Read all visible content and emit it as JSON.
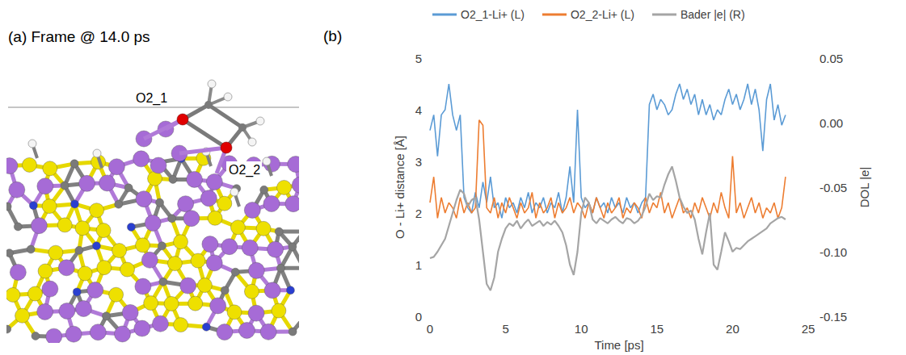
{
  "panel_a": {
    "title": "(a) Frame @ 14.0 ps",
    "labels": [
      "O2_1",
      "O2_2"
    ]
  },
  "chart_data": {
    "type": "line",
    "title": "(b)",
    "x_label": "Time [ps]",
    "y_label": "O - Li+ distance [Å]",
    "y2_label": "DOL |e|",
    "xlim": [
      0,
      25
    ],
    "xticks": [
      0,
      5,
      10,
      15,
      20,
      25
    ],
    "ylim": [
      0,
      5
    ],
    "yticks": [
      0,
      1,
      2,
      3,
      4,
      5
    ],
    "y2lim": [
      -0.15,
      0.05
    ],
    "y2ticks": [
      {
        "value": -0.15,
        "label": "-0.15"
      },
      {
        "value": -0.1,
        "label": "-0.10"
      },
      {
        "value": -0.05,
        "label": "-0.05"
      },
      {
        "value": 0,
        "label": "0.00"
      },
      {
        "value": 0.05,
        "label": "0.05"
      }
    ],
    "grid": false,
    "legend": "top",
    "x": [
      0,
      0.25,
      0.5,
      0.75,
      1,
      1.25,
      1.5,
      1.75,
      2,
      2.25,
      2.5,
      2.75,
      3,
      3.25,
      3.5,
      3.75,
      4,
      4.25,
      4.5,
      4.75,
      5,
      5.25,
      5.5,
      5.75,
      6,
      6.25,
      6.5,
      6.75,
      7,
      7.25,
      7.5,
      7.75,
      8,
      8.25,
      8.5,
      8.75,
      9,
      9.25,
      9.5,
      9.75,
      10,
      10.25,
      10.5,
      10.75,
      11,
      11.25,
      11.5,
      11.75,
      12,
      12.25,
      12.5,
      12.75,
      13,
      13.25,
      13.5,
      13.75,
      14,
      14.25,
      14.5,
      14.75,
      15,
      15.25,
      15.5,
      15.75,
      16,
      16.25,
      16.5,
      16.75,
      17,
      17.25,
      17.5,
      17.75,
      18,
      18.25,
      18.5,
      18.75,
      19,
      19.25,
      19.5,
      19.75,
      20,
      20.25,
      20.5,
      20.75,
      21,
      21.25,
      21.5,
      21.75,
      22,
      22.25,
      22.5,
      22.75,
      23,
      23.25,
      23.5
    ],
    "series": [
      {
        "name": "O2_1-Li+ (L)",
        "color": "#5b9bd5",
        "axis": "y",
        "values": [
          3.6,
          3.9,
          3.1,
          3.9,
          4.0,
          4.5,
          3.9,
          3.6,
          3.9,
          2.3,
          2.1,
          2.0,
          2.4,
          2.1,
          2.6,
          2.2,
          2.7,
          2.1,
          2.2,
          1.9,
          2.3,
          2.1,
          2.2,
          2.0,
          2.3,
          2.1,
          2.4,
          2.0,
          2.2,
          2.1,
          2.3,
          2.0,
          2.2,
          2.1,
          2.4,
          2.0,
          2.3,
          2.9,
          2.2,
          4.0,
          2.3,
          2.1,
          2.2,
          2.0,
          2.3,
          2.1,
          2.2,
          2.0,
          2.3,
          2.1,
          2.2,
          2.0,
          2.3,
          2.1,
          2.2,
          2.0,
          2.2,
          2.3,
          4.1,
          4.3,
          4.0,
          4.2,
          4.1,
          3.9,
          4.0,
          4.3,
          4.5,
          4.2,
          4.4,
          4.1,
          4.3,
          3.9,
          4.2,
          3.9,
          4.1,
          3.8,
          4.0,
          3.9,
          4.2,
          4.4,
          4.1,
          4.3,
          4.0,
          4.2,
          4.5,
          4.1,
          4.4,
          4.0,
          3.2,
          4.2,
          4.5,
          3.8,
          4.1,
          3.7,
          3.9
        ]
      },
      {
        "name": "O2_2-Li+ (L)",
        "color": "#ed7d31",
        "axis": "y",
        "values": [
          2.2,
          2.7,
          1.9,
          2.3,
          2.0,
          2.2,
          2.1,
          1.9,
          2.3,
          2.0,
          2.2,
          2.0,
          2.1,
          3.8,
          3.7,
          2.1,
          2.0,
          2.3,
          1.9,
          2.2,
          2.0,
          2.3,
          2.1,
          1.9,
          2.2,
          2.0,
          2.1,
          2.4,
          1.9,
          2.2,
          2.0,
          2.1,
          2.3,
          1.9,
          2.2,
          2.0,
          2.1,
          2.3,
          2.0,
          2.2,
          2.1,
          1.9,
          2.2,
          2.0,
          2.3,
          2.1,
          1.9,
          2.2,
          2.0,
          2.1,
          2.3,
          1.9,
          2.1,
          2.0,
          2.2,
          2.1,
          1.9,
          2.3,
          2.0,
          2.2,
          2.1,
          2.4,
          2.0,
          2.2,
          1.9,
          2.1,
          2.3,
          2.0,
          2.1,
          1.9,
          2.2,
          2.0,
          2.3,
          2.1,
          1.9,
          2.2,
          2.0,
          2.4,
          2.1,
          1.9,
          3.1,
          2.0,
          2.2,
          1.9,
          2.1,
          2.3,
          2.0,
          2.2,
          1.9,
          2.1,
          2.0,
          2.2,
          1.9,
          2.1,
          2.7
        ]
      },
      {
        "name": "Bader |e| (R)",
        "color": "#a5a5a5",
        "axis": "y2",
        "values": [
          -0.105,
          -0.104,
          -0.1,
          -0.095,
          -0.09,
          -0.08,
          -0.07,
          -0.06,
          -0.052,
          -0.055,
          -0.065,
          -0.06,
          -0.058,
          -0.075,
          -0.1,
          -0.125,
          -0.13,
          -0.12,
          -0.1,
          -0.09,
          -0.082,
          -0.078,
          -0.08,
          -0.076,
          -0.082,
          -0.078,
          -0.075,
          -0.08,
          -0.078,
          -0.076,
          -0.08,
          -0.077,
          -0.079,
          -0.076,
          -0.08,
          -0.085,
          -0.095,
          -0.11,
          -0.118,
          -0.1,
          -0.07,
          -0.058,
          -0.062,
          -0.075,
          -0.078,
          -0.074,
          -0.076,
          -0.078,
          -0.075,
          -0.073,
          -0.076,
          -0.078,
          -0.074,
          -0.075,
          -0.078,
          -0.076,
          -0.072,
          -0.065,
          -0.055,
          -0.06,
          -0.057,
          -0.058,
          -0.048,
          -0.04,
          -0.034,
          -0.045,
          -0.058,
          -0.065,
          -0.07,
          -0.068,
          -0.075,
          -0.09,
          -0.102,
          -0.085,
          -0.07,
          -0.11,
          -0.114,
          -0.1,
          -0.085,
          -0.092,
          -0.1,
          -0.097,
          -0.098,
          -0.095,
          -0.092,
          -0.09,
          -0.088,
          -0.086,
          -0.084,
          -0.082,
          -0.078,
          -0.076,
          -0.074,
          -0.073,
          -0.075
        ]
      }
    ]
  }
}
